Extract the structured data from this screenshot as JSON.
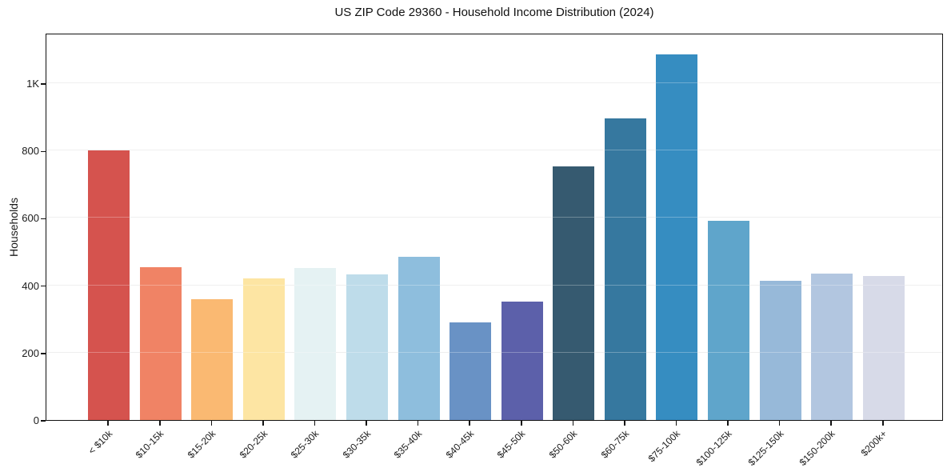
{
  "chart_data": {
    "type": "bar",
    "title": "US ZIP Code 29360 - Household Income Distribution (2024)",
    "xlabel": "",
    "ylabel": "Households",
    "categories": [
      "< $10k",
      "$10-15k",
      "$15-20k",
      "$20-25k",
      "$25-30k",
      "$30-35k",
      "$35-40k",
      "$40-45k",
      "$45-50k",
      "$50-60k",
      "$60-75k",
      "$75-100k",
      "$100-125k",
      "$125-150k",
      "$150-200k",
      "$200k+"
    ],
    "values": [
      800,
      455,
      360,
      420,
      452,
      433,
      485,
      290,
      352,
      753,
      895,
      1085,
      592,
      413,
      435,
      428
    ],
    "bar_colors": [
      "#d5534e",
      "#f08365",
      "#fab972",
      "#fde5a3",
      "#e5f2f3",
      "#bedcea",
      "#8ebedd",
      "#6992c5",
      "#5c60aa",
      "#365a70",
      "#36789f",
      "#368dc1",
      "#5fa5cb",
      "#97b9d9",
      "#b2c6e0",
      "#d7dae8"
    ],
    "ylim": [
      0,
      1150
    ],
    "yticks": [
      {
        "value": 0,
        "label": "0"
      },
      {
        "value": 200,
        "label": "200"
      },
      {
        "value": 400,
        "label": "400"
      },
      {
        "value": 600,
        "label": "600"
      },
      {
        "value": 800,
        "label": "800"
      },
      {
        "value": 1000,
        "label": "1K"
      }
    ],
    "grid": "horizontal",
    "legend": "none",
    "gridline_color": "#e9e9e9",
    "spine_color": "#111111",
    "text_color": "#1a1a1a",
    "background": "#ffffff"
  }
}
